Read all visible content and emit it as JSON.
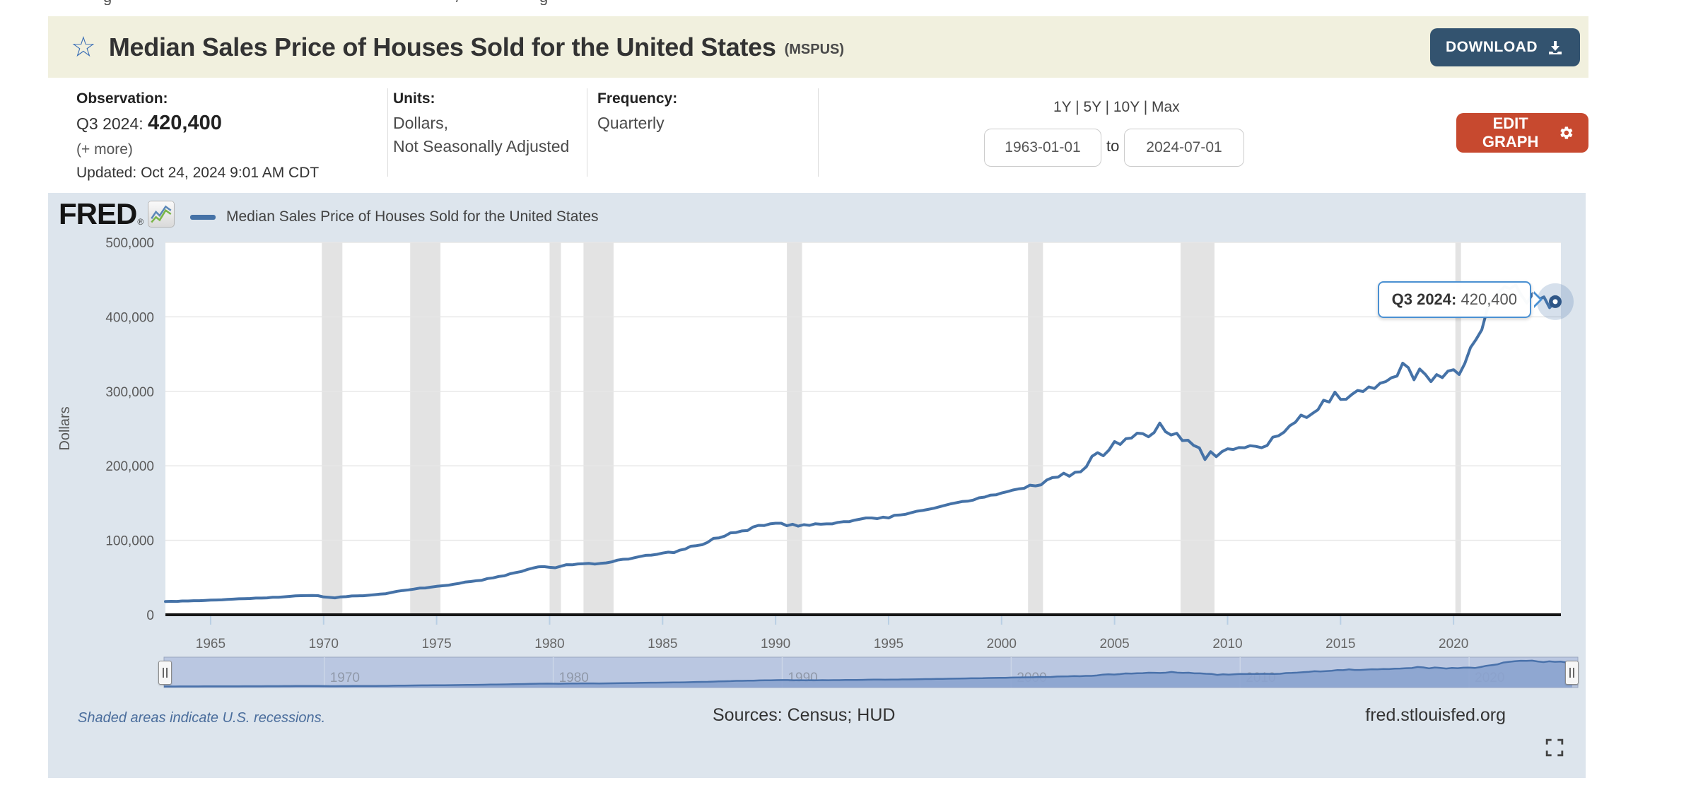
{
  "page": {
    "top_glyphs": [
      "g",
      "/",
      "g"
    ]
  },
  "header": {
    "title": "Median Sales Price of Houses Sold for the United States",
    "series_id": "(MSPUS)",
    "star_icon": "star-outline",
    "download_label": "DOWNLOAD",
    "colors": {
      "bar_background": "#f1f0de",
      "download_button": "#33536f",
      "edit_button": "#c7492f",
      "accent_blue": "#4572a7"
    }
  },
  "info": {
    "observation": {
      "label": "Observation:",
      "period": "Q3 2024:",
      "value": "420,400",
      "more": "(+ more)",
      "updated": "Updated: Oct 24, 2024 9:01 AM CDT"
    },
    "units": {
      "label": "Units:",
      "line1": "Dollars,",
      "line2": "Not Seasonally Adjusted"
    },
    "frequency": {
      "label": "Frequency:",
      "value": "Quarterly"
    },
    "range": {
      "presets": [
        "1Y",
        "5Y",
        "10Y",
        "Max"
      ],
      "separator": " | ",
      "start_date": "1963-01-01",
      "to_label": "to",
      "end_date": "2024-07-01"
    },
    "edit_label": "EDIT GRAPH"
  },
  "chart": {
    "brand": "FRED",
    "brand_reg": "®",
    "legend_label": "Median Sales Price of Houses Sold for the United States",
    "tooltip": {
      "period": "Q3 2024:",
      "value": "420,400"
    },
    "footer": {
      "note": "Shaded areas indicate U.S. recessions.",
      "sources": "Sources: Census; HUD",
      "site": "fred.stlouisfed.org"
    }
  },
  "chart_data": {
    "type": "line",
    "title": "Median Sales Price of Houses Sold for the United States",
    "xlabel": "",
    "ylabel": "Dollars",
    "ylim": [
      0,
      500000
    ],
    "yticks": [
      0,
      100000,
      200000,
      300000,
      400000,
      500000
    ],
    "xticks": [
      1965,
      1970,
      1975,
      1980,
      1985,
      1990,
      1995,
      2000,
      2005,
      2010,
      2015,
      2020
    ],
    "x_range": [
      1963.0,
      2024.75
    ],
    "frequency": "quarterly",
    "grid": true,
    "legend_position": "top",
    "line_color": "#4572a7",
    "recession_color": "#e3e3e3",
    "recessions": [
      [
        1969.92,
        1970.83
      ],
      [
        1973.83,
        1975.17
      ],
      [
        1980.0,
        1980.5
      ],
      [
        1981.5,
        1982.83
      ],
      [
        1990.5,
        1991.17
      ],
      [
        2001.17,
        2001.83
      ],
      [
        2007.92,
        2009.42
      ],
      [
        2020.08,
        2020.33
      ]
    ],
    "slider_xticks": [
      1970,
      1980,
      1990,
      2000,
      2010,
      2020
    ],
    "values": [
      17800,
      18000,
      17900,
      18500,
      18500,
      18900,
      18900,
      19300,
      19600,
      19800,
      20000,
      20600,
      21000,
      21400,
      21600,
      21800,
      22400,
      22400,
      22700,
      23400,
      23400,
      24100,
      24700,
      25300,
      25600,
      25700,
      25900,
      25600,
      23900,
      23300,
      22700,
      24000,
      24300,
      25200,
      25400,
      25500,
      26200,
      26900,
      27800,
      28300,
      29900,
      31500,
      32500,
      33400,
      34400,
      35800,
      36000,
      37100,
      38100,
      38900,
      39600,
      41000,
      42100,
      43800,
      44600,
      45600,
      46300,
      48600,
      49500,
      51400,
      52300,
      55000,
      56600,
      58100,
      60600,
      62600,
      64300,
      64600,
      63700,
      63100,
      65200,
      67300,
      67100,
      68200,
      68500,
      69000,
      68000,
      69000,
      69600,
      71000,
      73300,
      74500,
      74800,
      76600,
      78200,
      79800,
      80100,
      81100,
      82800,
      84100,
      83400,
      86600,
      88200,
      92000,
      92800,
      94000,
      97300,
      102600,
      103200,
      105600,
      110000,
      110400,
      112500,
      113000,
      117800,
      120000,
      119800,
      122000,
      122900,
      122900,
      119500,
      121500,
      119000,
      121000,
      120000,
      122100,
      121500,
      122000,
      122000,
      124000,
      125000,
      125000,
      127000,
      128500,
      130000,
      130000,
      129000,
      131000,
      130000,
      133500,
      134000,
      134900,
      137000,
      139000,
      140000,
      141500,
      143000,
      145000,
      147000,
      149000,
      150500,
      152000,
      152500,
      154000,
      157000,
      158000,
      160500,
      161000,
      163500,
      165300,
      167500,
      169000,
      169800,
      174000,
      173100,
      174500,
      180900,
      184200,
      184700,
      190100,
      186000,
      191300,
      191900,
      198800,
      212700,
      217600,
      213500,
      221000,
      232500,
      228700,
      236300,
      237300,
      243800,
      243200,
      239000,
      244700,
      257400,
      245800,
      241400,
      243700,
      233900,
      234300,
      227300,
      224100,
      208400,
      219000,
      212200,
      219000,
      222900,
      221900,
      224500,
      224300,
      226900,
      226100,
      224300,
      227200,
      238400,
      240200,
      245200,
      253700,
      258400,
      268100,
      264800,
      270200,
      275200,
      288000,
      285600,
      298900,
      289200,
      289400,
      295800,
      301100,
      299800,
      306000,
      303800,
      310900,
      313100,
      318200,
      320500,
      337900,
      331800,
      315600,
      330000,
      322800,
      313000,
      322500,
      318400,
      327100,
      329000,
      322600,
      337500,
      358700,
      369800,
      382600,
      411200,
      423600,
      433100,
      440300,
      438000,
      442600,
      429000,
      418500,
      431000,
      423200,
      426800,
      412300,
      420400
    ]
  }
}
